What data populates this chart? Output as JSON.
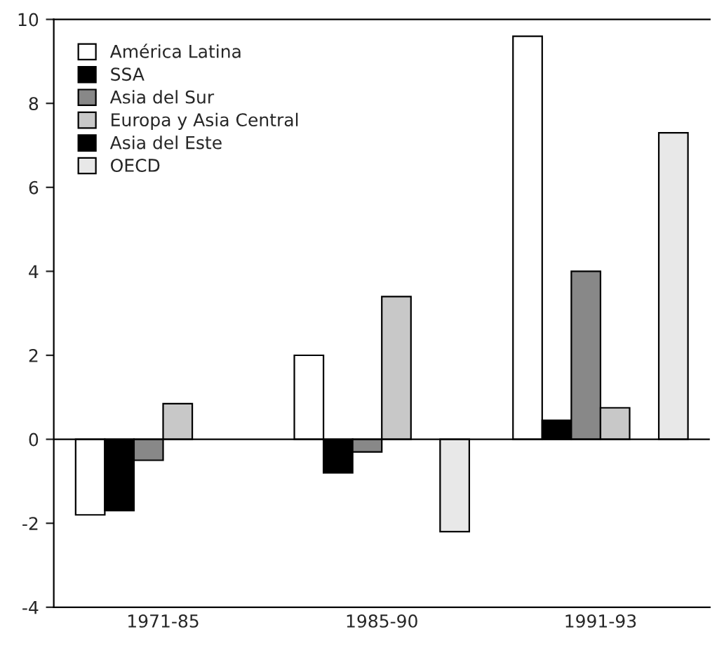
{
  "chart_data": {
    "type": "bar",
    "categories": [
      "1971-85",
      "1985-90",
      "1991-93"
    ],
    "series": [
      {
        "name": "América Latina",
        "color": "#ffffff",
        "values": [
          -1.8,
          2.0,
          9.6
        ]
      },
      {
        "name": "SSA",
        "color": "#000000",
        "values": [
          -1.7,
          -0.8,
          0.45
        ]
      },
      {
        "name": "Asia del Sur",
        "color": "#888888",
        "values": [
          -0.5,
          -0.3,
          4.0
        ]
      },
      {
        "name": "Europa y Asia Central",
        "color": "#c8c8c8",
        "values": [
          0.85,
          3.4,
          0.75
        ]
      },
      {
        "name": "Asia del Este",
        "color": "#000000",
        "values": [
          null,
          null,
          null
        ]
      },
      {
        "name": "OECD",
        "color": "#e8e8e8",
        "values": [
          null,
          -2.2,
          7.3
        ]
      }
    ],
    "ylim": [
      -4,
      10
    ],
    "yticks": [
      -4,
      -2,
      0,
      2,
      4,
      6,
      8,
      10
    ],
    "legend": "top left"
  }
}
